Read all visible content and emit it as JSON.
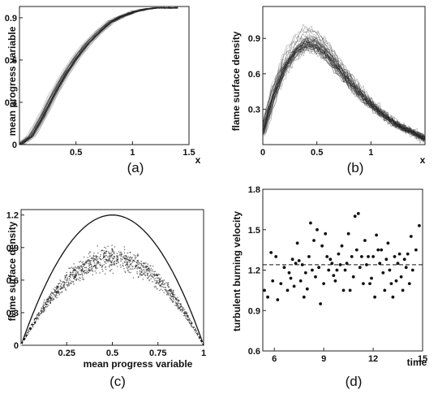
{
  "chart_data": [
    {
      "type": "line",
      "panel": "(a)",
      "xlabel": "x",
      "ylabel": "mean progress variable",
      "xlim": [
        0,
        1.5
      ],
      "ylim": [
        0,
        0.98
      ],
      "xticks": [
        "0.5",
        "1",
        "1.5"
      ],
      "yticks": [
        "0",
        "0.3",
        "0.6",
        "0.9"
      ],
      "ytick_values": [
        0,
        0.3,
        0.6,
        0.9
      ],
      "xtick_values": [
        0.5,
        1,
        1.5
      ],
      "caption": "(a)",
      "series": [
        {
          "values_x": [
            0,
            0.1,
            0.2,
            0.3,
            0.4,
            0.5,
            0.6,
            0.7,
            0.8,
            0.9,
            1.0,
            1.1,
            1.2,
            1.3,
            1.4
          ],
          "values_y": [
            0,
            0.06,
            0.2,
            0.36,
            0.5,
            0.62,
            0.72,
            0.8,
            0.87,
            0.91,
            0.94,
            0.96,
            0.97,
            0.97,
            0.97
          ]
        }
      ],
      "bundle_count": 40,
      "line_color": "#222222"
    },
    {
      "type": "line",
      "panel": "(b)",
      "xlabel": "x",
      "ylabel": "flame surface density",
      "xlim": [
        0,
        1.5
      ],
      "ylim": [
        0,
        1.17
      ],
      "xticks": [
        "0",
        "0.5",
        "1"
      ],
      "xtick_values": [
        0,
        0.5,
        1
      ],
      "yticks": [
        "0.3",
        "0.6",
        "0.9"
      ],
      "ytick_values": [
        0.3,
        0.6,
        0.9
      ],
      "caption": "(b)",
      "series": [
        {
          "values_x": [
            0,
            0.1,
            0.2,
            0.3,
            0.4,
            0.5,
            0.6,
            0.7,
            0.8,
            0.9,
            1.0,
            1.1,
            1.2,
            1.3,
            1.4,
            1.5
          ],
          "values_y": [
            0.1,
            0.42,
            0.66,
            0.8,
            0.88,
            0.86,
            0.78,
            0.66,
            0.55,
            0.44,
            0.35,
            0.27,
            0.2,
            0.14,
            0.1,
            0.05
          ]
        }
      ],
      "bundle_count": 45,
      "line_color": "#222222"
    },
    {
      "type": "scatter",
      "panel": "(c)",
      "xlabel": "mean progress variable",
      "ylabel": "flame surface density",
      "xlim": [
        0,
        1
      ],
      "ylim": [
        0,
        1.25
      ],
      "xticks": [
        "0.25",
        "0.5",
        "0.75",
        "1"
      ],
      "xtick_values": [
        0.25,
        0.5,
        0.75,
        1
      ],
      "yticks": [
        "0",
        "0.3",
        "0.6",
        "0.9",
        "1.2"
      ],
      "ytick_values": [
        0,
        0.3,
        0.6,
        0.9,
        1.2
      ],
      "caption": "(c)",
      "envelope_peak": 1.2,
      "mean_peak": 0.8,
      "spread": 0.2,
      "point_count": 1400,
      "line_color": "#111111"
    },
    {
      "type": "scatter",
      "panel": "(d)",
      "xlabel": "time",
      "ylabel": "turbulent burning velocity",
      "xlim": [
        5.3,
        15
      ],
      "ylim": [
        0.6,
        1.8
      ],
      "xticks": [
        "6",
        "9",
        "12",
        "15"
      ],
      "xtick_values": [
        6,
        9,
        12,
        15
      ],
      "yticks": [
        "0.6",
        "0.9",
        "1.2",
        "1.5",
        "1.8"
      ],
      "ytick_values": [
        0.6,
        0.9,
        1.2,
        1.5,
        1.8
      ],
      "caption": "(d)",
      "mean_line": 1.24,
      "x": [
        5.4,
        5.6,
        5.8,
        5.9,
        6.1,
        6.2,
        6.4,
        6.6,
        6.8,
        6.9,
        7.0,
        7.1,
        7.2,
        7.3,
        7.4,
        7.5,
        7.6,
        7.7,
        7.8,
        7.9,
        8.0,
        8.1,
        8.2,
        8.3,
        8.4,
        8.5,
        8.6,
        8.7,
        8.8,
        8.9,
        9.0,
        9.1,
        9.2,
        9.3,
        9.4,
        9.5,
        9.6,
        9.7,
        9.8,
        9.9,
        10.0,
        10.1,
        10.2,
        10.3,
        10.4,
        10.5,
        10.6,
        10.7,
        10.8,
        10.9,
        11.0,
        11.1,
        11.2,
        11.3,
        11.4,
        11.5,
        11.6,
        11.7,
        11.8,
        11.9,
        12.0,
        12.1,
        12.2,
        12.3,
        12.4,
        12.5,
        12.6,
        12.7,
        12.8,
        12.9,
        13.0,
        13.1,
        13.2,
        13.3,
        13.4,
        13.5,
        13.6,
        13.7,
        13.8,
        13.9,
        14.0,
        14.1,
        14.2,
        14.3,
        14.4,
        14.6,
        14.8
      ],
      "y": [
        1.05,
        1.0,
        1.33,
        1.12,
        1.3,
        0.98,
        1.1,
        1.22,
        1.05,
        1.18,
        1.14,
        1.28,
        1.08,
        1.25,
        1.4,
        1.27,
        1.12,
        1.24,
        1.0,
        1.18,
        1.06,
        1.3,
        1.55,
        1.2,
        1.42,
        1.15,
        1.5,
        1.22,
        0.95,
        1.38,
        1.1,
        1.47,
        1.3,
        1.2,
        1.28,
        1.25,
        1.16,
        1.12,
        1.2,
        1.32,
        1.24,
        1.38,
        1.05,
        1.2,
        1.25,
        1.47,
        1.05,
        1.3,
        1.15,
        1.6,
        1.35,
        1.62,
        1.22,
        1.3,
        1.1,
        1.42,
        1.24,
        1.3,
        1.1,
        1.14,
        1.3,
        1.0,
        1.46,
        1.35,
        1.25,
        1.35,
        1.18,
        1.05,
        1.28,
        1.4,
        1.2,
        1.1,
        1.0,
        1.3,
        1.12,
        1.25,
        1.32,
        1.15,
        1.05,
        1.28,
        1.22,
        1.32,
        1.1,
        1.45,
        1.2,
        1.35,
        1.53
      ],
      "dot_color": "#111111"
    }
  ]
}
